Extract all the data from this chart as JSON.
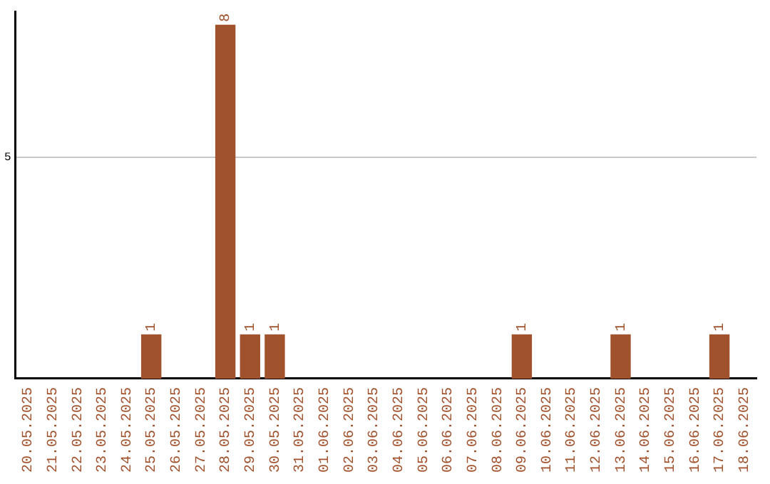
{
  "chart_data": {
    "type": "bar",
    "categories": [
      "20.05.2025",
      "21.05.2025",
      "22.05.2025",
      "23.05.2025",
      "24.05.2025",
      "25.05.2025",
      "26.05.2025",
      "27.05.2025",
      "28.05.2025",
      "29.05.2025",
      "30.05.2025",
      "31.05.2025",
      "01.06.2025",
      "02.06.2025",
      "03.06.2025",
      "04.06.2025",
      "05.06.2025",
      "06.06.2025",
      "07.06.2025",
      "08.06.2025",
      "09.06.2025",
      "10.06.2025",
      "11.06.2025",
      "12.06.2025",
      "13.06.2025",
      "14.06.2025",
      "15.06.2025",
      "16.06.2025",
      "17.06.2025",
      "18.06.2025"
    ],
    "values": [
      0,
      0,
      0,
      0,
      0,
      1,
      0,
      0,
      8,
      1,
      1,
      0,
      0,
      0,
      0,
      0,
      0,
      0,
      0,
      0,
      1,
      0,
      0,
      0,
      1,
      0,
      0,
      0,
      1,
      0
    ],
    "value_labels": [
      null,
      null,
      null,
      null,
      null,
      "1",
      null,
      null,
      "8",
      "1",
      "1",
      null,
      null,
      null,
      null,
      null,
      null,
      null,
      null,
      null,
      "1",
      null,
      null,
      null,
      "1",
      null,
      null,
      null,
      "1",
      null
    ],
    "color": "#a0522d",
    "ylim": [
      0,
      8.3
    ],
    "yticks": [
      5
    ],
    "grid": "y",
    "legend": false
  }
}
